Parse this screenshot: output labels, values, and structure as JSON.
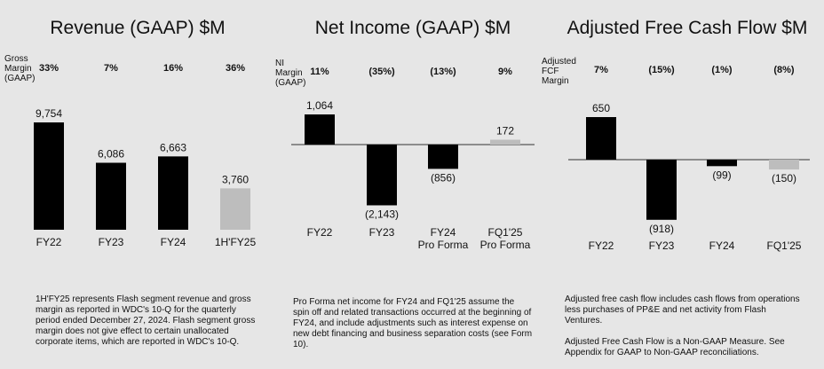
{
  "panels": [
    {
      "title": "Revenue (GAAP) $M",
      "margin_label": [
        "Gross",
        "Margin",
        "(GAAP)"
      ],
      "note": [
        "1H'FY25 represents Flash segment revenue and gross margin as reported in WDC's 10-Q for the quarterly period ended December 27, 2024. Flash segment gross margin does not give effect to certain unallocated corporate items, which are reported in WDC's 10-Q."
      ]
    },
    {
      "title": "Net Income (GAAP) $M",
      "margin_label": [
        "NI",
        "Margin",
        "(GAAP)"
      ],
      "note": [
        "Pro Forma net income for FY24 and FQ1'25 assume the spin off and related transactions occurred at the beginning of FY24, and include adjustments such as interest expense on new debt financing and business separation costs (see Form 10)."
      ]
    },
    {
      "title": "Adjusted Free Cash Flow $M",
      "margin_label": [
        "Adjusted",
        "FCF",
        "Margin"
      ],
      "note": [
        "Adjusted free cash flow includes cash flows from operations less purchases of PP&E and net activity from Flash Ventures.",
        "Adjusted Free Cash Flow is a Non-GAAP Measure. See Appendix for GAAP to Non-GAAP reconciliations."
      ]
    }
  ],
  "colors": {
    "actual": "#000000",
    "partial": "#bdbdbd",
    "background": "#e6e6e6"
  },
  "chart_data": [
    {
      "type": "bar",
      "title": "Revenue (GAAP) $M",
      "categories": [
        [
          "FY22"
        ],
        [
          "FY23"
        ],
        [
          "FY24"
        ],
        [
          "1H'FY25"
        ]
      ],
      "values": [
        9754,
        6086,
        6663,
        3760
      ],
      "value_labels": [
        "9,754",
        "6,086",
        "6,663",
        "3,760"
      ],
      "margins": [
        "33%",
        "7%",
        "16%",
        "36%"
      ],
      "highlight_last": true
    },
    {
      "type": "bar",
      "title": "Net Income (GAAP) $M",
      "categories": [
        [
          "FY22"
        ],
        [
          "FY23"
        ],
        [
          "FY24",
          "Pro Forma"
        ],
        [
          "FQ1'25",
          "Pro Forma"
        ]
      ],
      "values": [
        1064,
        -2143,
        -856,
        172
      ],
      "value_labels": [
        "1,064",
        "(2,143)",
        "(856)",
        "172"
      ],
      "margins": [
        "11%",
        "(35%)",
        "(13%)",
        "9%"
      ],
      "highlight_last": true
    },
    {
      "type": "bar",
      "title": "Adjusted Free Cash Flow $M",
      "categories": [
        [
          "FY22"
        ],
        [
          "FY23"
        ],
        [
          "FY24"
        ],
        [
          "FQ1'25"
        ]
      ],
      "values": [
        650,
        -918,
        -99,
        -150
      ],
      "value_labels": [
        "650",
        "(918)",
        "(99)",
        "(150)"
      ],
      "margins": [
        "7%",
        "(15%)",
        "(1%)",
        "(8%)"
      ],
      "highlight_last": true
    }
  ]
}
